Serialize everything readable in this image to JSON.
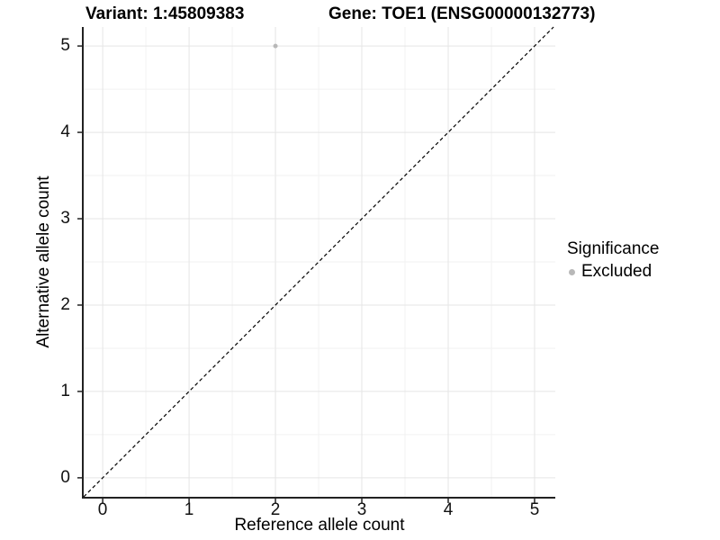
{
  "figure": {
    "title_left": "Variant: 1:45809383",
    "title_right": "Gene: TOE1 (ENSG00000132773)"
  },
  "axes": {
    "x": {
      "label": "Reference allele count",
      "ticks": [
        "0",
        "1",
        "2",
        "3",
        "4",
        "5"
      ]
    },
    "y": {
      "label": "Alternative allele count",
      "ticks": [
        "0",
        "1",
        "2",
        "3",
        "4",
        "5"
      ]
    }
  },
  "legend": {
    "title": "Significance",
    "items": [
      {
        "label": "Excluded",
        "color": "#b8b8b8"
      }
    ]
  },
  "chart_data": {
    "type": "scatter",
    "title": "Variant: 1:45809383 / Gene: TOE1 (ENSG00000132773)",
    "xlabel": "Reference allele count",
    "ylabel": "Alternative allele count",
    "xlim": [
      -0.22,
      5.24
    ],
    "ylim": [
      -0.22,
      5.22
    ],
    "x_ticks": [
      0,
      1,
      2,
      3,
      4,
      5
    ],
    "y_ticks": [
      0,
      1,
      2,
      3,
      4,
      5
    ],
    "grid": "major+minor",
    "legend_position": "right-center",
    "series": [
      {
        "name": "Excluded",
        "color": "#b8b8b8",
        "points": [
          {
            "x": 2,
            "y": 5
          }
        ],
        "point_radius": 2.5
      }
    ],
    "reference_line": {
      "type": "abline",
      "slope": 1,
      "intercept": 0,
      "style": "dashed",
      "color": "#000000"
    }
  },
  "theme": {
    "background": "#ffffff",
    "axis_line": "#222222",
    "tick_color": "#222222",
    "grid_major": "#e5e5e5",
    "grid_minor": "#f2f2f2",
    "ref_line_color": "#000000"
  }
}
